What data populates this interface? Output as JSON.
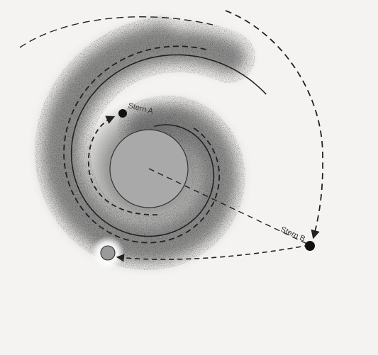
{
  "labels": {
    "star_a": "Stern A",
    "star_b": "Stern B"
  },
  "colors": {
    "background": "#f4f3f1",
    "halo": "#565656",
    "core": "#a9a9a9",
    "core_stroke": "#333333",
    "spiral_line": "#222222",
    "star": "#111111",
    "planet": "#9a9a9a"
  }
}
